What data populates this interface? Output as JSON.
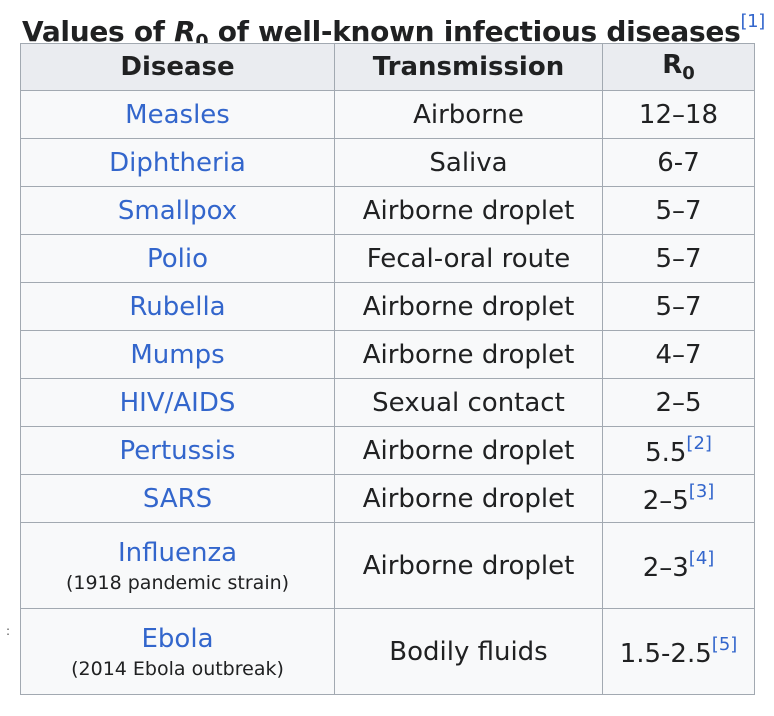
{
  "caption": {
    "prefix": "Values of ",
    "symbol": "R",
    "subscript": "0",
    "suffix": " of well-known infectious diseases",
    "ref": "[1]"
  },
  "gutter_mark": ":",
  "table": {
    "headers": {
      "disease": "Disease",
      "transmission": "Transmission",
      "r0_symbol": "R",
      "r0_subscript": "0"
    },
    "rows": [
      {
        "disease": "Measles",
        "note": "",
        "transmission": "Airborne",
        "r0": "12–18",
        "ref": ""
      },
      {
        "disease": "Diphtheria",
        "note": "",
        "transmission": "Saliva",
        "r0": "6-7",
        "ref": ""
      },
      {
        "disease": "Smallpox",
        "note": "",
        "transmission": "Airborne droplet",
        "r0": "5–7",
        "ref": ""
      },
      {
        "disease": "Polio",
        "note": "",
        "transmission": "Fecal-oral route",
        "r0": "5–7",
        "ref": ""
      },
      {
        "disease": "Rubella",
        "note": "",
        "transmission": "Airborne droplet",
        "r0": "5–7",
        "ref": ""
      },
      {
        "disease": "Mumps",
        "note": "",
        "transmission": "Airborne droplet",
        "r0": "4–7",
        "ref": ""
      },
      {
        "disease": "HIV/AIDS",
        "note": "",
        "transmission": "Sexual contact",
        "r0": "2–5",
        "ref": ""
      },
      {
        "disease": "Pertussis",
        "note": "",
        "transmission": "Airborne droplet",
        "r0": "5.5",
        "ref": "[2]"
      },
      {
        "disease": "SARS",
        "note": "",
        "transmission": "Airborne droplet",
        "r0": "2–5",
        "ref": "[3]"
      },
      {
        "disease": "Influenza",
        "note": "(1918 pandemic strain)",
        "transmission": "Airborne droplet",
        "r0": "2–3",
        "ref": "[4]"
      },
      {
        "disease": "Ebola",
        "note": "(2014 Ebola outbreak)",
        "transmission": "Bodily fluids",
        "r0": "1.5-2.5",
        "ref": "[5]"
      }
    ]
  }
}
